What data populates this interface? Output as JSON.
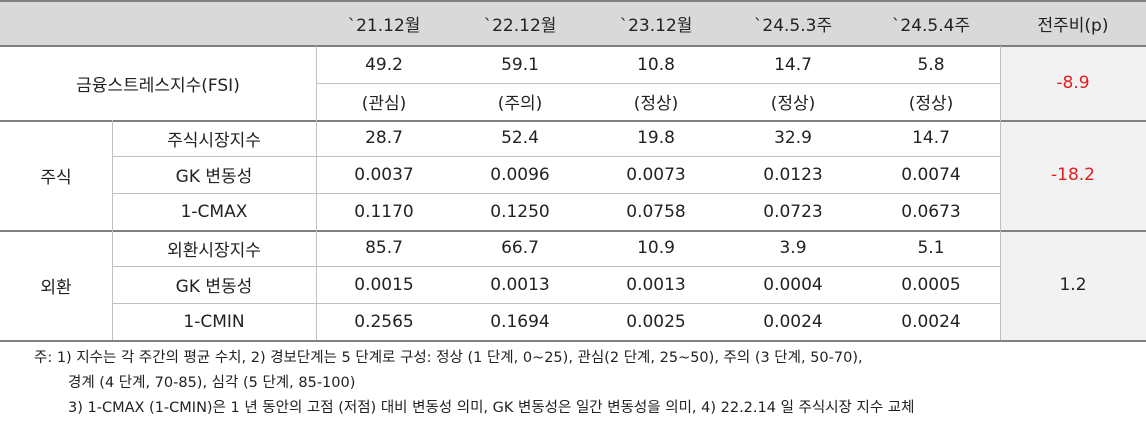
{
  "header": {
    "blank": "",
    "cols": [
      "`21.12월",
      "`22.12월",
      "`23.12월",
      "`24.5.3주",
      "`24.5.4주"
    ],
    "change": "전주비(p)"
  },
  "fsi": {
    "label": "금융스트레스지수(FSI)",
    "values": [
      "49.2",
      "59.1",
      "10.8",
      "14.7",
      "5.8"
    ],
    "states": [
      "(관심)",
      "(주의)",
      "(정상)",
      "(정상)",
      "(정상)"
    ],
    "change": "-8.9"
  },
  "stock": {
    "group": "주식",
    "rows": [
      {
        "label": "주식시장지수",
        "values": [
          "28.7",
          "52.4",
          "19.8",
          "32.9",
          "14.7"
        ]
      },
      {
        "label": "GK 변동성",
        "values": [
          "0.0037",
          "0.0096",
          "0.0073",
          "0.0123",
          "0.0074"
        ]
      },
      {
        "label": "1-CMAX",
        "values": [
          "0.1170",
          "0.1250",
          "0.0758",
          "0.0723",
          "0.0673"
        ]
      }
    ],
    "change": "-18.2"
  },
  "fx": {
    "group": "외환",
    "rows": [
      {
        "label": "외환시장지수",
        "values": [
          "85.7",
          "66.7",
          "10.9",
          "3.9",
          "5.1"
        ]
      },
      {
        "label": "GK 변동성",
        "values": [
          "0.0015",
          "0.0013",
          "0.0013",
          "0.0004",
          "0.0005"
        ]
      },
      {
        "label": "1-CMIN",
        "values": [
          "0.2565",
          "0.1694",
          "0.0025",
          "0.0024",
          "0.0024"
        ]
      }
    ],
    "change": "1.2"
  },
  "notes": [
    "주: 1) 지수는 각 주간의 평균 수치, 2) 경보단계는 5 단계로 구성: 정상 (1 단계, 0~25), 관심(2 단계, 25~50), 주의 (3 단계, 50-70),",
    "경계 (4 단계, 70-85), 심각 (5 단계, 85-100)",
    "3) 1-CMAX (1-CMIN)은 1 년 동안의 고점 (저점) 대비 변동성 의미, GK 변동성은 일간 변동성을 의미, 4) 22.2.14 일 주식시장 지수 교체"
  ],
  "colors": {
    "header_bg": "#d9d9d9",
    "change_bg": "#f2f2f2",
    "negative": "#e02020"
  }
}
